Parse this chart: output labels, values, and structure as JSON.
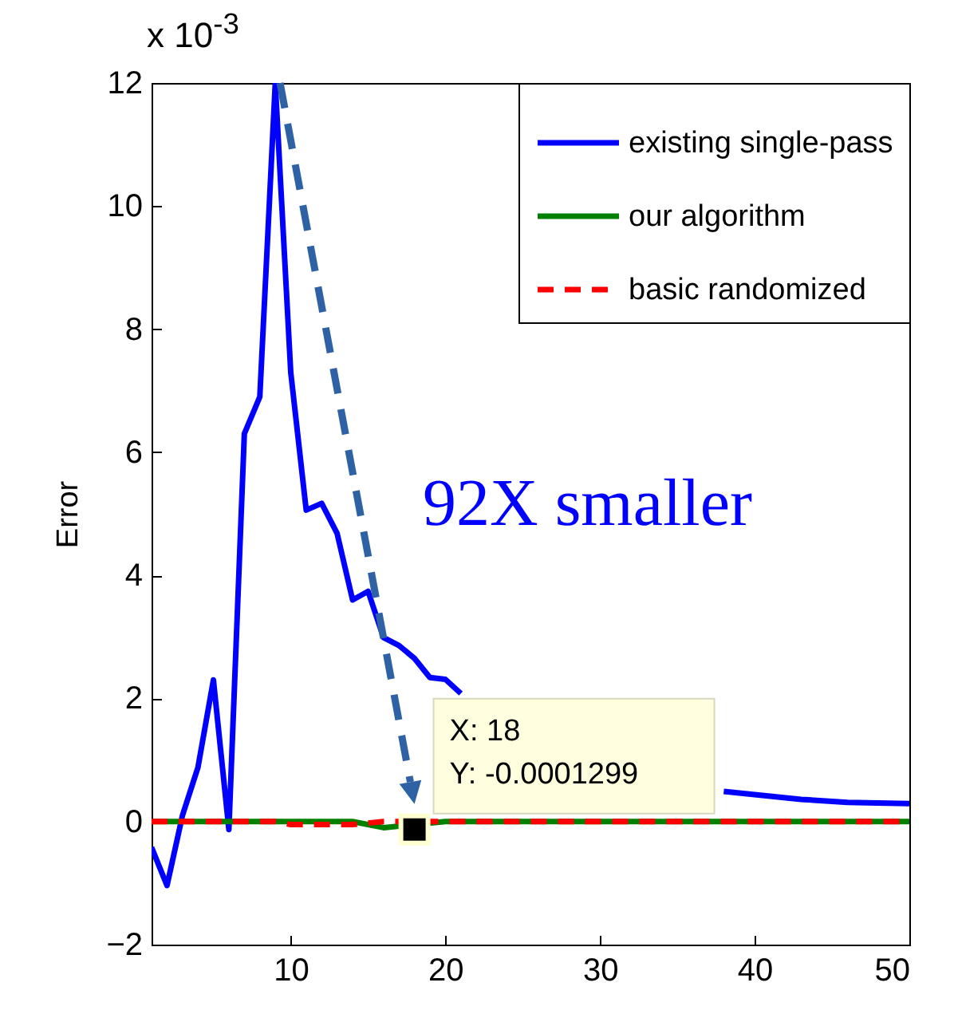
{
  "chart_data": {
    "type": "line",
    "ylabel": "Error",
    "xlim": [
      1,
      50
    ],
    "xticks": [
      10,
      20,
      30,
      40,
      50
    ],
    "ylim": [
      -2,
      12
    ],
    "yticks": [
      -2,
      0,
      2,
      4,
      6,
      8,
      10,
      12
    ],
    "legend": "top right",
    "grid": false,
    "annotations": [
      "x 10$^{-3}$",
      "92X smaller",
      {
        "text": "X: 18\nY: -0.0001299",
        "x": 18,
        "y": -0.1299
      }
    ],
    "series": [
      {
        "name": "existing single-pass",
        "color": "#0000ff",
        "line_style": "solid",
        "x": [
          1,
          2,
          3,
          4,
          5,
          6,
          7,
          8,
          9,
          10,
          11,
          12,
          13,
          14,
          15,
          16,
          17,
          18,
          19,
          20,
          21,
          30,
          38,
          43,
          46,
          50
        ],
        "values": [
          -0.42,
          -1.04,
          0.1,
          0.88,
          2.3,
          -0.13,
          6.3,
          6.9,
          12,
          7.3,
          5.06,
          5.17,
          4.68,
          3.6,
          3.74,
          2.99,
          2.86,
          2.65,
          2.34,
          2.31,
          2.08,
          null,
          0.49,
          0.36,
          0.31,
          0.29
        ]
      },
      {
        "name": "our algorithm",
        "color": "#008000",
        "line_style": "solid",
        "x": [
          1,
          14,
          16,
          20,
          50
        ],
        "values": [
          0,
          0,
          -0.1,
          0,
          0
        ]
      },
      {
        "name": "basic randomized",
        "color": "#ff0000",
        "line_style": "dashed",
        "x": [
          1,
          9,
          10,
          14,
          16,
          50
        ],
        "values": [
          0,
          0,
          -0.05,
          -0.05,
          0,
          0
        ]
      }
    ]
  }
}
